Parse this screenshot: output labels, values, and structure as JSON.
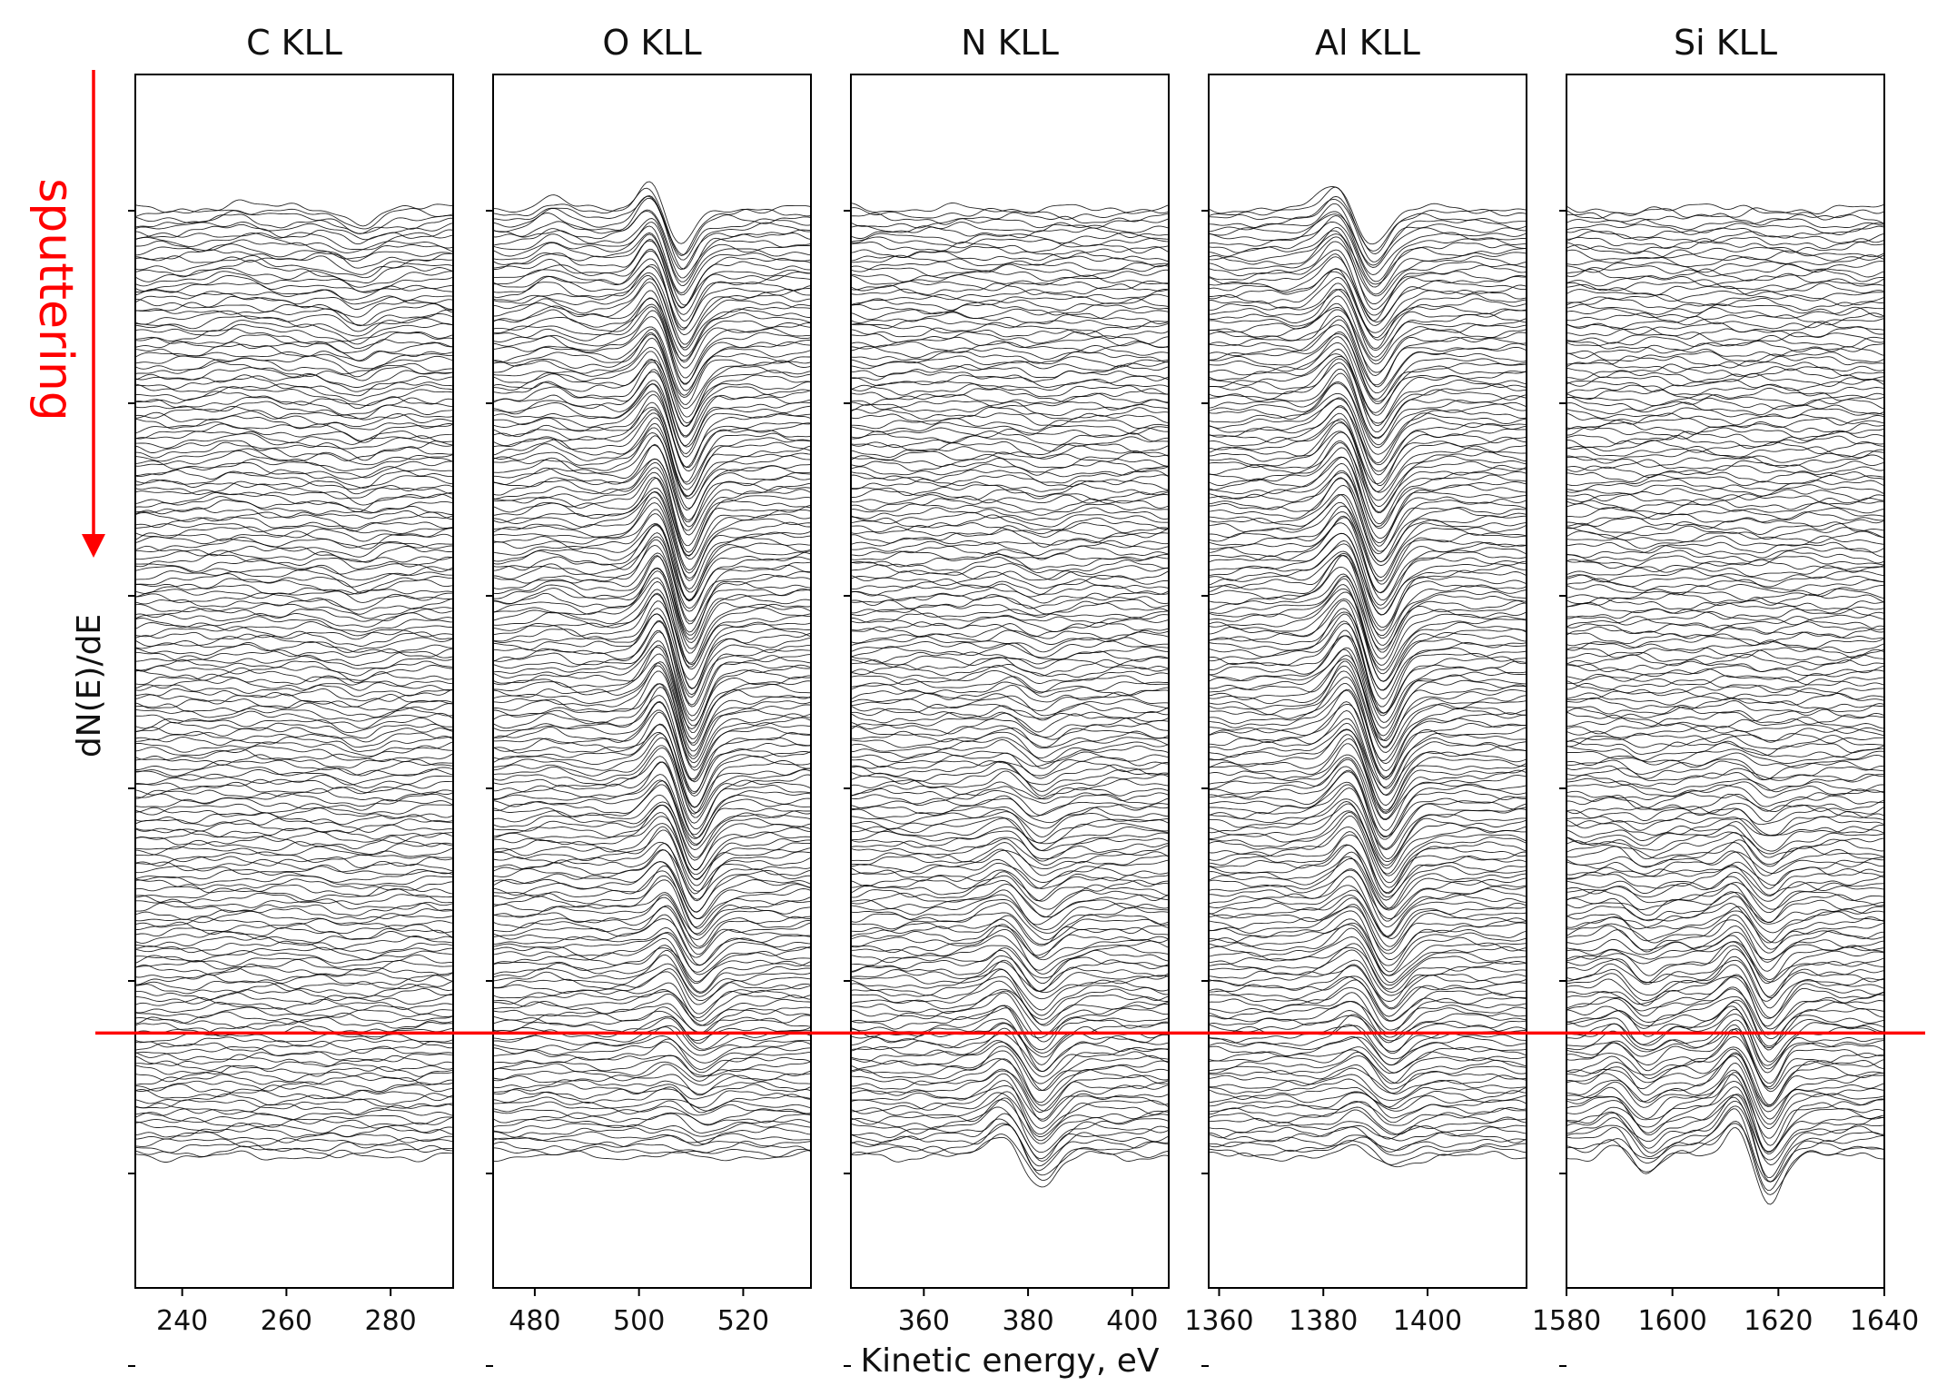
{
  "chart_data": {
    "type": "line",
    "xlabel": "Kinetic energy, eV",
    "ylabel": "dN(E)/dE",
    "annotation": {
      "text": "sputtering",
      "color": "#ff0000",
      "arrow_direction": "down"
    },
    "reference_line": {
      "color": "#ff0000",
      "orientation": "horizontal",
      "position_fraction_of_stack": 0.87
    },
    "stack": {
      "n_spectra": 200,
      "stack_direction": "downward",
      "line_color": "#000000"
    },
    "grid": false,
    "panels": [
      {
        "title": "C KLL",
        "xlim": [
          231,
          292
        ],
        "xticks": [
          "240",
          "260",
          "280"
        ],
        "xtick_values": [
          240,
          260,
          280
        ],
        "features": [
          {
            "type": "peak",
            "center_eV": 251,
            "width_eV": 5,
            "amplitude_top": 0.6,
            "amplitude_bottom": 0.0
          },
          {
            "type": "dip",
            "center_eV": 274,
            "width_eV": 4,
            "amplitude_top": 1.2,
            "amplitude_bottom": 0.0
          }
        ],
        "noise_level": 0.55
      },
      {
        "title": "O KLL",
        "xlim": [
          472,
          533
        ],
        "xticks": [
          "480",
          "500",
          "520"
        ],
        "xtick_values": [
          480,
          500,
          520
        ],
        "features": [
          {
            "type": "derivative",
            "center_eV_top": 506,
            "center_eV_shift": 4,
            "width_eV": 3.5,
            "amplitude_top": 4.0,
            "amplitude_mid": 5.5,
            "amplitude_bottom": 0.4
          },
          {
            "type": "peak",
            "center_eV": 483,
            "width_eV": 4,
            "amplitude_top": 1.0,
            "amplitude_bottom": 0.1
          }
        ],
        "noise_level": 0.5
      },
      {
        "title": "N KLL",
        "xlim": [
          346,
          407
        ],
        "xticks": [
          "360",
          "380",
          "400"
        ],
        "xtick_values": [
          360,
          380,
          400
        ],
        "features": [
          {
            "type": "derivative",
            "center_eV_top": 380,
            "center_eV_shift": 0,
            "width_eV": 4,
            "amplitude_top": 0.0,
            "amplitude_mid": 0.8,
            "amplitude_bottom": 3.2
          }
        ],
        "noise_level": 0.55
      },
      {
        "title": "Al KLL",
        "xlim": [
          1358,
          1419
        ],
        "xticks": [
          "1360",
          "1380",
          "1400"
        ],
        "xtick_values": [
          1360,
          1380,
          1400
        ],
        "features": [
          {
            "type": "derivative",
            "center_eV_top": 1387,
            "center_eV_shift": 4,
            "width_eV": 4,
            "amplitude_top": 3.6,
            "amplitude_mid": 5.5,
            "amplitude_bottom": 1.0
          }
        ],
        "noise_level": 0.5
      },
      {
        "title": "Si KLL",
        "xlim": [
          1580,
          1640
        ],
        "xticks": [
          "1580",
          "1600",
          "1620",
          "1640"
        ],
        "xtick_values": [
          1580,
          1600,
          1620,
          1640
        ],
        "features": [
          {
            "type": "derivative",
            "center_eV_top": 1616,
            "center_eV_shift": 0,
            "width_eV": 3.5,
            "amplitude_top": 0.0,
            "amplitude_mid": 0.0,
            "amplitude_bottom": 4.5
          },
          {
            "type": "derivative",
            "center_eV_top": 1593,
            "center_eV_shift": 0,
            "width_eV": 3.5,
            "amplitude_top": 0.0,
            "amplitude_mid": 0.0,
            "amplitude_bottom": 1.8
          }
        ],
        "noise_level": 0.6
      }
    ]
  }
}
